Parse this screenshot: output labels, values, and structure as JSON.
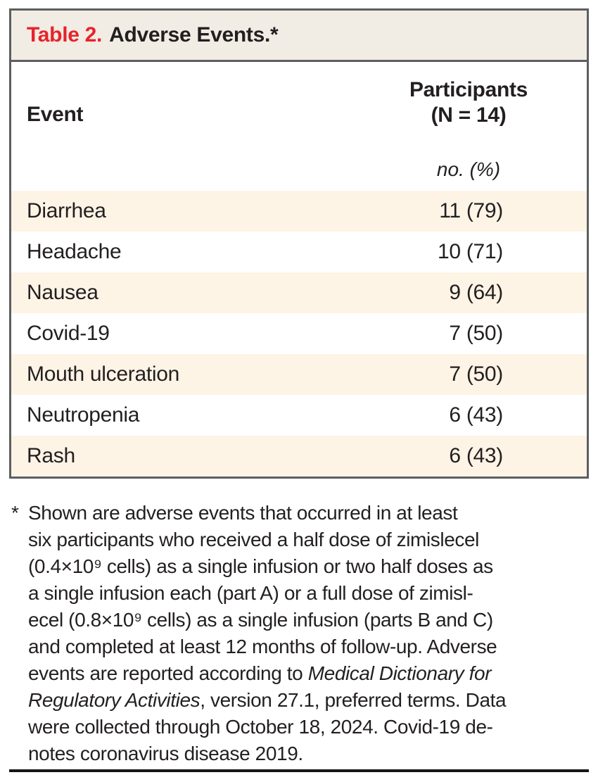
{
  "colors": {
    "accent_red": "#e7232b",
    "header_bg": "#f1ece4",
    "row_shade": "#fdf4e6",
    "border_gray": "#5d5e60",
    "text": "#231f20",
    "rule": "#161616"
  },
  "table": {
    "title": {
      "label": "Table 2.",
      "rest": "Adverse Events.*"
    },
    "columns": {
      "event": "Event",
      "participants_line1": "Participants",
      "participants_line2": "(N = 14)",
      "units": "no. (%)"
    },
    "rows": [
      {
        "event": "Diarrhea",
        "value": "11 (79)"
      },
      {
        "event": "Headache",
        "value": "10 (71)"
      },
      {
        "event": "Nausea",
        "value": "9 (64)"
      },
      {
        "event": "Covid-19",
        "value": "7 (50)"
      },
      {
        "event": "Mouth ulceration",
        "value": "7 (50)"
      },
      {
        "event": "Neutropenia",
        "value": "6 (43)"
      },
      {
        "event": "Rash",
        "value": "6 (43)"
      }
    ]
  },
  "footnote": {
    "marker": "*",
    "lines": [
      [
        {
          "text": "Shown are adverse events that occurred in at least"
        }
      ],
      [
        {
          "text": "six participants who received a half dose of zimislecel"
        }
      ],
      [
        {
          "text": "(0.4×10⁹ cells) as a single infusion or two half doses as"
        }
      ],
      [
        {
          "text": "a single infusion each (part A) or a full dose of zimisl-"
        }
      ],
      [
        {
          "text": "ecel (0.8×10⁹ cells) as a single infusion (parts B and C)"
        }
      ],
      [
        {
          "text": "and completed at least 12 months of follow-up. Adverse"
        }
      ],
      [
        {
          "text": "events are reported according to "
        },
        {
          "text": "Medical Dictionary for",
          "italic": true
        }
      ],
      [
        {
          "text": "Regulatory Activities",
          "italic": true
        },
        {
          "text": ", version 27.1, preferred terms. Data"
        }
      ],
      [
        {
          "text": "were collected through October 18, 2024. Covid-19 de-"
        }
      ],
      [
        {
          "text": "notes coronavirus disease 2019."
        }
      ]
    ]
  }
}
